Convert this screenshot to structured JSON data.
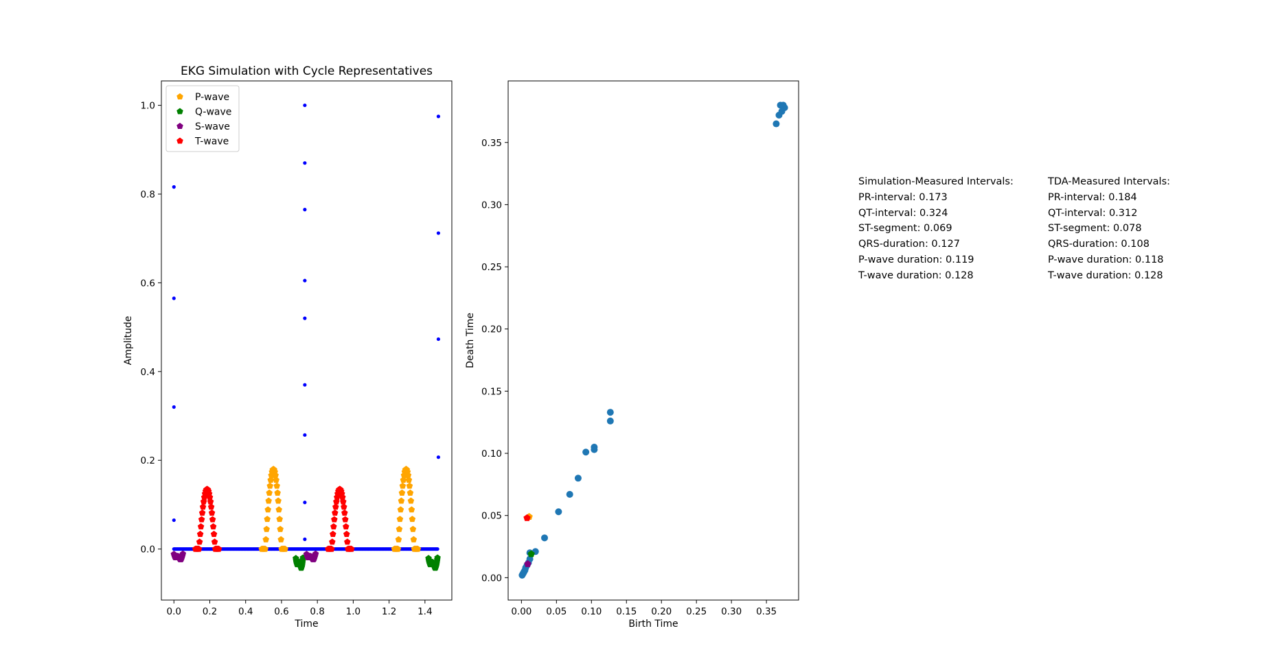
{
  "colors": {
    "baseline": "#0000ff",
    "p_wave": "#ffa500",
    "q_wave": "#008000",
    "s_wave": "#800080",
    "t_wave": "#ff0000",
    "diagram_points": "#1f77b4"
  },
  "chart_data": [
    {
      "type": "scatter",
      "title": "EKG Simulation with Cycle Representatives",
      "xlabel": "Time",
      "ylabel": "Amplitude",
      "xlim": [
        -0.07,
        1.55
      ],
      "ylim": [
        -0.115,
        1.055
      ],
      "xticks": [
        "0.0",
        "0.2",
        "0.4",
        "0.6",
        "0.8",
        "1.0",
        "1.2",
        "1.4"
      ],
      "yticks": [
        "0.0",
        "0.2",
        "0.4",
        "0.6",
        "0.8",
        "1.0"
      ],
      "legend_position": "upper-left",
      "legend": [
        "P-wave",
        "Q-wave",
        "S-wave",
        "T-wave"
      ],
      "signal": {
        "baseline_y": 0.0,
        "t_start": 0.0,
        "t_end": 1.47,
        "spikes": [
          {
            "t": 0.0,
            "values": [
              0.816,
              0.565,
              0.32,
              0.065
            ]
          },
          {
            "t": 0.73,
            "values": [
              1.0,
              0.87,
              0.765,
              0.605,
              0.52,
              0.37,
              0.257,
              0.105,
              0.022
            ]
          },
          {
            "t": 1.475,
            "values": [
              0.975,
              0.712,
              0.473,
              0.207
            ]
          }
        ]
      },
      "series": [
        {
          "name": "P-wave",
          "segments": [
            {
              "start": 0.49,
              "end": 0.62,
              "peak": 0.18
            },
            {
              "start": 1.23,
              "end": 1.36,
              "peak": 0.18
            }
          ]
        },
        {
          "name": "Q-wave",
          "segments": [
            {
              "start": 0.68,
              "end": 0.72,
              "min": -0.06
            },
            {
              "start": 1.42,
              "end": 1.47,
              "min": -0.06
            }
          ]
        },
        {
          "name": "S-wave",
          "segments": [
            {
              "start": 0.0,
              "end": 0.05,
              "min": -0.033
            },
            {
              "start": 0.74,
              "end": 0.79,
              "min": -0.033
            }
          ]
        },
        {
          "name": "T-wave",
          "segments": [
            {
              "start": 0.12,
              "end": 0.25,
              "peak": 0.135
            },
            {
              "start": 0.86,
              "end": 0.99,
              "peak": 0.135
            }
          ]
        }
      ]
    },
    {
      "type": "scatter",
      "title": "",
      "xlabel": "Birth Time",
      "ylabel": "Death Time",
      "xlim": [
        -0.019,
        0.396
      ],
      "ylim": [
        -0.018,
        0.3995
      ],
      "xticks": [
        "0.00",
        "0.05",
        "0.10",
        "0.15",
        "0.20",
        "0.25",
        "0.30",
        "0.35"
      ],
      "yticks": [
        "0.00",
        "0.05",
        "0.10",
        "0.15",
        "0.20",
        "0.25",
        "0.30",
        "0.35"
      ],
      "points": [
        [
          0.001,
          0.002
        ],
        [
          0.002,
          0.003
        ],
        [
          0.003,
          0.004
        ],
        [
          0.004,
          0.005
        ],
        [
          0.005,
          0.006
        ],
        [
          0.006,
          0.008
        ],
        [
          0.008,
          0.01
        ],
        [
          0.01,
          0.012
        ],
        [
          0.012,
          0.015
        ],
        [
          0.012,
          0.02
        ],
        [
          0.02,
          0.021
        ],
        [
          0.033,
          0.032
        ],
        [
          0.053,
          0.053
        ],
        [
          0.069,
          0.067
        ],
        [
          0.081,
          0.08
        ],
        [
          0.092,
          0.101
        ],
        [
          0.104,
          0.105
        ],
        [
          0.104,
          0.103
        ],
        [
          0.127,
          0.126
        ],
        [
          0.127,
          0.133
        ],
        [
          0.364,
          0.365
        ],
        [
          0.368,
          0.372
        ],
        [
          0.372,
          0.375
        ],
        [
          0.376,
          0.378
        ],
        [
          0.37,
          0.38
        ],
        [
          0.374,
          0.38
        ]
      ],
      "representatives": [
        {
          "name": "P-wave",
          "x": 0.011,
          "y": 0.049
        },
        {
          "name": "T-wave",
          "x": 0.008,
          "y": 0.048
        },
        {
          "name": "Q-wave",
          "x": 0.014,
          "y": 0.019
        },
        {
          "name": "S-wave",
          "x": 0.009,
          "y": 0.011
        }
      ]
    }
  ],
  "intervals": {
    "simulation": {
      "heading": "Simulation-Measured Intervals:",
      "lines": [
        "PR-interval: 0.173",
        "QT-interval: 0.324",
        "ST-segment: 0.069",
        "QRS-duration: 0.127",
        "P-wave duration: 0.119",
        "T-wave duration: 0.128"
      ]
    },
    "tda": {
      "heading": "TDA-Measured Intervals:",
      "lines": [
        "PR-interval: 0.184",
        "QT-interval: 0.312",
        "ST-segment: 0.078",
        "QRS-duration: 0.108",
        "P-wave duration: 0.118",
        "T-wave duration: 0.128"
      ]
    }
  }
}
